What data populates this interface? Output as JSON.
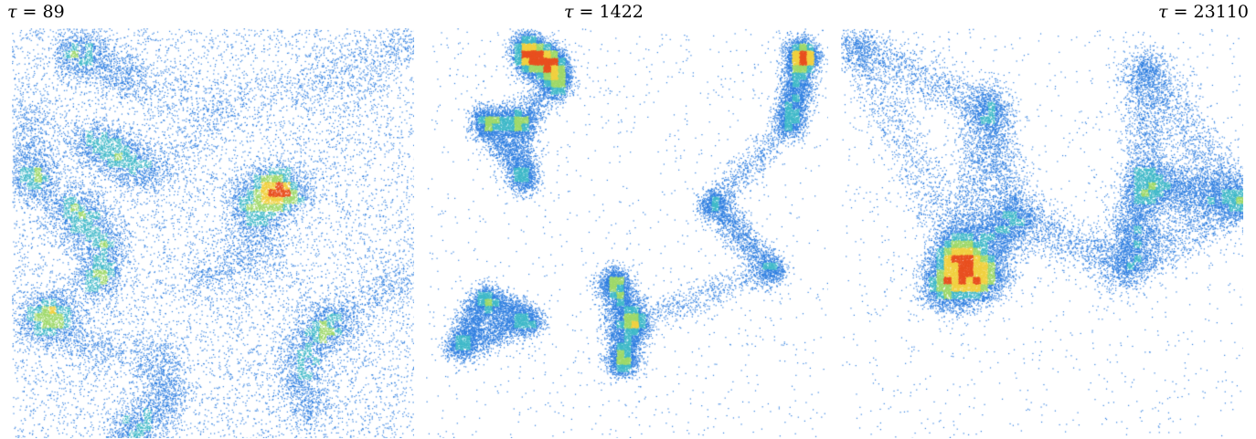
{
  "panels": [
    {
      "tau_label": "τ",
      "eq": " = ",
      "value": "89",
      "title_align": "left",
      "seed": 11,
      "stage": "early"
    },
    {
      "tau_label": "τ",
      "eq": " = ",
      "value": "1422",
      "title_align": "center",
      "seed": 23,
      "stage": "mid"
    },
    {
      "tau_label": "τ",
      "eq": " = ",
      "value": "23110",
      "title_align": "right",
      "seed": 37,
      "stage": "late"
    }
  ],
  "colors": {
    "low": "#2f7fe0",
    "mid": "#3fb8c8",
    "high": "#9ed86a",
    "peak": "#f0d040",
    "max": "#e85020"
  }
}
